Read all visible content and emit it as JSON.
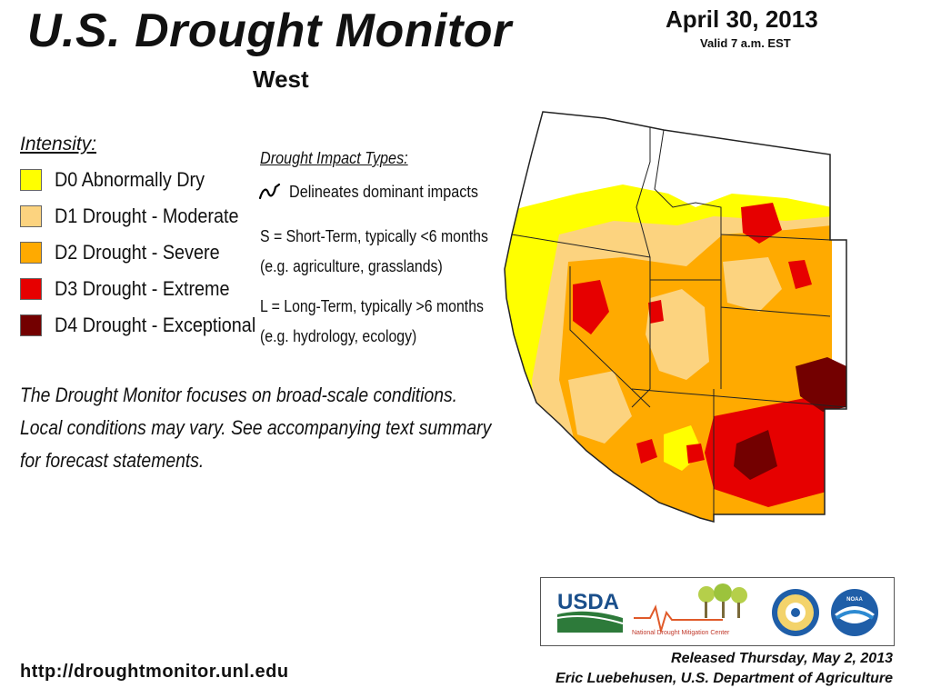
{
  "header": {
    "title": "U.S. Drought Monitor",
    "region": "West",
    "date": "April 30, 2013",
    "valid": "Valid 7 a.m. EST"
  },
  "legend": {
    "title": "Intensity:",
    "items": [
      {
        "label": "D0 Abnormally Dry",
        "color": "#FFFF00"
      },
      {
        "label": "D1 Drought - Moderate",
        "color": "#FCD37F"
      },
      {
        "label": "D2 Drought - Severe",
        "color": "#FFAA00"
      },
      {
        "label": "D3 Drought - Extreme",
        "color": "#E60000"
      },
      {
        "label": "D4 Drought - Exceptional",
        "color": "#730000"
      }
    ]
  },
  "impacts": {
    "title": "Drought Impact Types:",
    "delineates": "Delineates dominant impacts",
    "short_term": "S = Short-Term, typically <6 months",
    "short_term_eg": "(e.g. agriculture, grasslands)",
    "long_term": "L = Long-Term, typically >6 months",
    "long_term_eg": "(e.g. hydrology, ecology)"
  },
  "note": {
    "line1": "The Drought Monitor focuses on broad-scale conditions.",
    "line2": "Local conditions may vary. See accompanying text summary",
    "line3": "for forecast statements."
  },
  "footer": {
    "url": "http://droughtmonitor.unl.edu",
    "released": "Released Thursday, May 2, 2013",
    "author": "Eric Luebehusen, U.S. Department of Agriculture"
  },
  "logos": {
    "usda": "USDA",
    "ndmc": "National Drought Mitigation Center",
    "noaa": "NOAA"
  }
}
